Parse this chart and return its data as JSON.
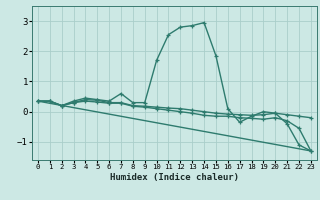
{
  "xlabel": "Humidex (Indice chaleur)",
  "xlim": [
    -0.5,
    23.5
  ],
  "ylim": [
    -1.6,
    3.5
  ],
  "yticks": [
    -1,
    0,
    1,
    2,
    3
  ],
  "xticks": [
    0,
    1,
    2,
    3,
    4,
    5,
    6,
    7,
    8,
    9,
    10,
    11,
    12,
    13,
    14,
    15,
    16,
    17,
    18,
    19,
    20,
    21,
    22,
    23
  ],
  "bg_color": "#cce8e4",
  "grid_color": "#aaceca",
  "line_color": "#2e7b6e",
  "lines": [
    {
      "x": [
        0,
        1,
        2,
        3,
        4,
        5,
        6,
        7,
        8,
        9,
        10,
        11,
        12,
        13,
        14,
        15,
        16,
        17,
        18,
        19,
        20,
        21,
        22,
        23
      ],
      "y": [
        0.35,
        0.35,
        0.2,
        0.35,
        0.45,
        0.4,
        0.35,
        0.6,
        0.3,
        0.3,
        1.7,
        2.55,
        2.8,
        2.85,
        2.95,
        1.85,
        0.1,
        -0.35,
        -0.15,
        0.0,
        -0.05,
        -0.4,
        -1.1,
        -1.3
      ],
      "marker": true
    },
    {
      "x": [
        0,
        1,
        2,
        3,
        4,
        5,
        6,
        7,
        8,
        9,
        10,
        11,
        12,
        13,
        14,
        15,
        16,
        17,
        18,
        19,
        20,
        21,
        22,
        23
      ],
      "y": [
        0.35,
        0.35,
        0.2,
        0.3,
        0.4,
        0.38,
        0.3,
        0.3,
        0.2,
        0.18,
        0.15,
        0.12,
        0.1,
        0.05,
        0.0,
        -0.05,
        -0.08,
        -0.1,
        -0.12,
        -0.1,
        -0.05,
        -0.1,
        -0.15,
        -0.2
      ],
      "marker": true
    },
    {
      "x": [
        0,
        1,
        2,
        3,
        4,
        5,
        6,
        7,
        8,
        9,
        10,
        11,
        12,
        13,
        14,
        15,
        16,
        17,
        18,
        19,
        20,
        21,
        22,
        23
      ],
      "y": [
        0.35,
        0.35,
        0.2,
        0.3,
        0.35,
        0.32,
        0.28,
        0.28,
        0.18,
        0.15,
        0.1,
        0.05,
        0.0,
        -0.05,
        -0.12,
        -0.15,
        -0.15,
        -0.2,
        -0.22,
        -0.25,
        -0.2,
        -0.3,
        -0.55,
        -1.3
      ],
      "marker": true
    },
    {
      "x": [
        0,
        23
      ],
      "y": [
        0.35,
        -1.3
      ],
      "marker": false
    }
  ]
}
